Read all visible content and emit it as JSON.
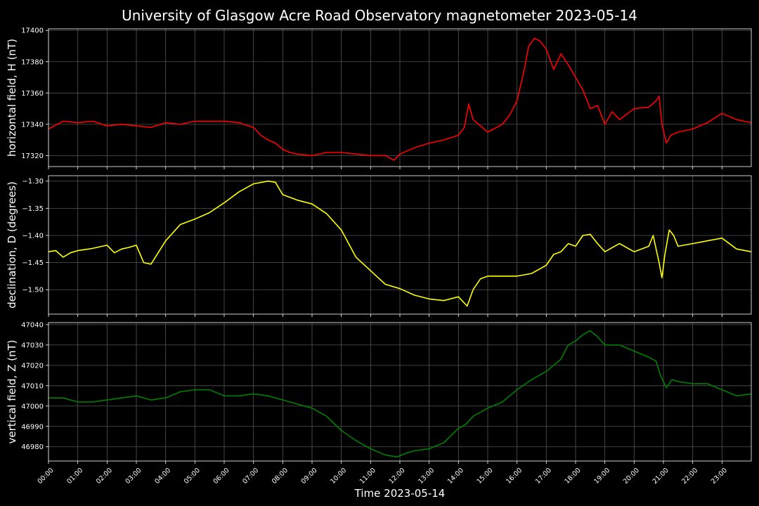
{
  "figure": {
    "title": "University of Glasgow Acre Road Observatory magnetometer 2023-05-14",
    "xlabel": "Time 2023-05-14"
  },
  "chart_data": [
    {
      "type": "line",
      "ylabel": "horizontal field, H (nT)",
      "ylim": [
        17313,
        17401
      ],
      "yticks": [
        17320,
        17340,
        17360,
        17380,
        17400
      ],
      "ytick_labels": [
        "17320",
        "17340",
        "17360",
        "17380",
        "17400"
      ],
      "grid": true,
      "color": "#ff0000",
      "series": [
        {
          "x": [
            0,
            0.5,
            1,
            1.5,
            2,
            2.5,
            3,
            3.5,
            4,
            4.5,
            5,
            5.5,
            6,
            6.5,
            7,
            7.25,
            7.5,
            7.75,
            8,
            8.25,
            8.5,
            9,
            9.5,
            10,
            10.5,
            11,
            11.5,
            11.8,
            12,
            12.5,
            13,
            13.5,
            14,
            14.2,
            14.35,
            14.5,
            14.75,
            15,
            15.5,
            15.75,
            16,
            16.25,
            16.4,
            16.6,
            16.8,
            17,
            17.25,
            17.5,
            17.75,
            18,
            18.25,
            18.5,
            18.75,
            19,
            19.25,
            19.5,
            20,
            20.5,
            20.75,
            20.85,
            20.95,
            21.1,
            21.25,
            21.5,
            22,
            22.5,
            23,
            23.5,
            24
          ],
          "y": [
            17337,
            17342,
            17341,
            17342,
            17339,
            17340,
            17339,
            17338,
            17341,
            17340,
            17342,
            17342,
            17342,
            17341,
            17338,
            17333,
            17330,
            17328,
            17324,
            17322,
            17321,
            17320,
            17322,
            17322,
            17321,
            17320,
            17320,
            17317,
            17321,
            17325,
            17328,
            17330,
            17333,
            17338,
            17353,
            17343,
            17339,
            17335,
            17340,
            17346,
            17355,
            17375,
            17390,
            17395,
            17393,
            17388,
            17375,
            17385,
            17378,
            17370,
            17362,
            17350,
            17352,
            17340,
            17348,
            17343,
            17350,
            17351,
            17355,
            17358,
            17340,
            17328,
            17333,
            17335,
            17337,
            17341,
            17347,
            17343,
            17341
          ]
        }
      ]
    },
    {
      "type": "line",
      "ylabel": "declination, D (degrees)",
      "ylim": [
        -1.545,
        -1.29
      ],
      "yticks": [
        -1.5,
        -1.45,
        -1.4,
        -1.35,
        -1.3
      ],
      "ytick_labels": [
        "−1.50",
        "−1.45",
        "−1.40",
        "−1.35",
        "−1.30"
      ],
      "grid": true,
      "color": "#ffff00",
      "series": [
        {
          "x": [
            0,
            0.25,
            0.5,
            0.75,
            1,
            1.5,
            2,
            2.25,
            2.5,
            2.75,
            3,
            3.25,
            3.5,
            4,
            4.5,
            5,
            5.5,
            6,
            6.5,
            7,
            7.5,
            7.75,
            8,
            8.5,
            9,
            9.5,
            10,
            10.5,
            11,
            11.5,
            12,
            12.5,
            13,
            13.5,
            14,
            14.3,
            14.5,
            14.75,
            15,
            15.5,
            16,
            16.5,
            17,
            17.25,
            17.5,
            17.75,
            18,
            18.25,
            18.5,
            18.75,
            19,
            19.5,
            20,
            20.5,
            20.65,
            20.85,
            20.95,
            21.05,
            21.2,
            21.35,
            21.5,
            22,
            22.5,
            23,
            23.5,
            24
          ],
          "y": [
            -1.43,
            -1.428,
            -1.44,
            -1.432,
            -1.428,
            -1.424,
            -1.418,
            -1.432,
            -1.425,
            -1.422,
            -1.418,
            -1.45,
            -1.453,
            -1.41,
            -1.38,
            -1.37,
            -1.358,
            -1.34,
            -1.32,
            -1.305,
            -1.3,
            -1.302,
            -1.325,
            -1.335,
            -1.342,
            -1.36,
            -1.39,
            -1.44,
            -1.465,
            -1.49,
            -1.498,
            -1.51,
            -1.517,
            -1.52,
            -1.513,
            -1.53,
            -1.5,
            -1.48,
            -1.475,
            -1.475,
            -1.475,
            -1.47,
            -1.455,
            -1.435,
            -1.43,
            -1.415,
            -1.42,
            -1.4,
            -1.398,
            -1.415,
            -1.43,
            -1.415,
            -1.43,
            -1.42,
            -1.4,
            -1.45,
            -1.478,
            -1.435,
            -1.39,
            -1.4,
            -1.42,
            -1.415,
            -1.41,
            -1.405,
            -1.425,
            -1.43
          ]
        }
      ]
    },
    {
      "type": "line",
      "ylabel": "vertical field, Z (nT)",
      "ylim": [
        46973,
        47041
      ],
      "yticks": [
        46980,
        46990,
        47000,
        47010,
        47020,
        47030,
        47040
      ],
      "ytick_labels": [
        "46980",
        "46990",
        "47000",
        "47010",
        "47020",
        "47030",
        "47040"
      ],
      "grid": true,
      "color": "#008000",
      "series": [
        {
          "x": [
            0,
            0.5,
            1,
            1.5,
            2,
            2.5,
            3,
            3.5,
            4,
            4.5,
            5,
            5.5,
            6,
            6.5,
            7,
            7.5,
            8,
            8.5,
            9,
            9.5,
            10,
            10.5,
            11,
            11.5,
            11.9,
            12.25,
            12.5,
            13,
            13.5,
            14,
            14.25,
            14.5,
            15,
            15.5,
            16,
            16.5,
            17,
            17.25,
            17.5,
            17.75,
            18,
            18.25,
            18.5,
            18.75,
            19,
            19.5,
            20,
            20.5,
            20.75,
            20.9,
            21.1,
            21.3,
            21.5,
            22,
            22.5,
            23,
            23.5,
            24
          ],
          "y": [
            47004,
            47004,
            47002,
            47002,
            47003,
            47004,
            47005,
            47003,
            47004,
            47007,
            47008,
            47008,
            47005,
            47005,
            47006,
            47005,
            47003,
            47001,
            46999,
            46995,
            46988,
            46983,
            46979,
            46976,
            46975,
            46977,
            46978,
            46979,
            46982,
            46989,
            46991,
            46995,
            46999,
            47002,
            47008,
            47013,
            47017,
            47020,
            47023,
            47030,
            47032,
            47035,
            47037,
            47034,
            47030,
            47030,
            47027,
            47024,
            47022,
            47015,
            47009,
            47013,
            47012,
            47011,
            47011,
            47008,
            47005,
            47006
          ]
        }
      ]
    }
  ],
  "xaxis": {
    "xlim": [
      0,
      24
    ],
    "tick_labels": [
      "00:00",
      "01:00",
      "02:00",
      "03:00",
      "04:00",
      "05:00",
      "06:00",
      "07:00",
      "08:00",
      "09:00",
      "10:00",
      "11:00",
      "12:00",
      "13:00",
      "14:00",
      "15:00",
      "16:00",
      "17:00",
      "18:00",
      "19:00",
      "20:00",
      "21:00",
      "22:00",
      "23:00"
    ]
  },
  "colors": {
    "background": "#000000",
    "foreground": "#ffffff",
    "grid": "#555555"
  }
}
